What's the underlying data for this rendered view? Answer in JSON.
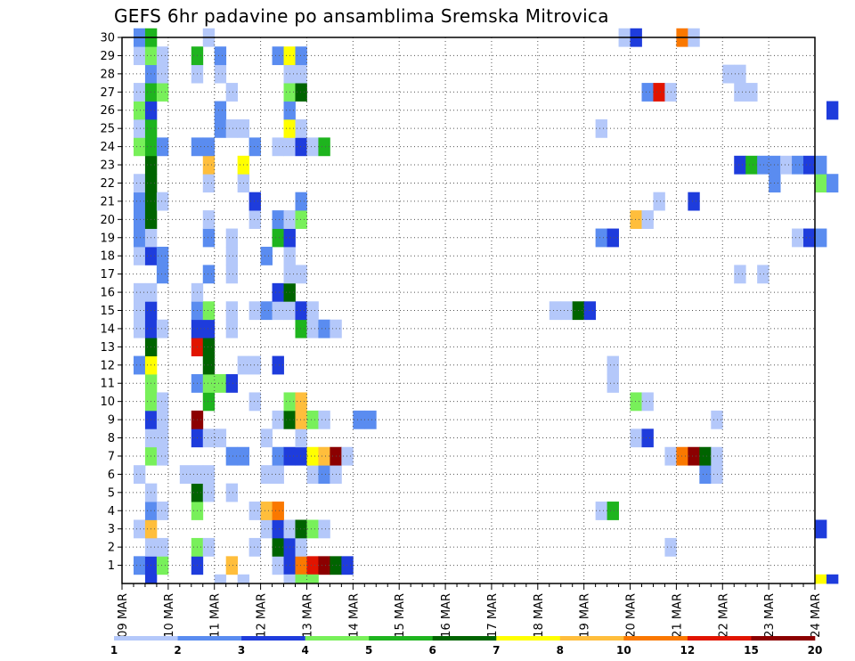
{
  "chart_data": {
    "type": "heatmap",
    "title": "GEFS 6hr padavine po ansamblima Sremska Mitrovica",
    "x_ticks": [
      "09 MAR",
      "10 MAR",
      "11 MAR",
      "12 MAR",
      "13 MAR",
      "14 MAR",
      "15 MAR",
      "16 MAR",
      "17 MAR",
      "18 MAR",
      "19 MAR",
      "20 MAR",
      "21 MAR",
      "22 MAR",
      "23 MAR",
      "24 MAR"
    ],
    "y_ticks": [
      1,
      2,
      3,
      4,
      5,
      6,
      7,
      8,
      9,
      10,
      11,
      12,
      13,
      14,
      15,
      16,
      17,
      18,
      19,
      20,
      21,
      22,
      23,
      24,
      25,
      26,
      27,
      28,
      29,
      30
    ],
    "x_steps_per_day": 4,
    "ylim": [
      0,
      30
    ],
    "grid": true,
    "colorbar": {
      "labels": [
        "1",
        "2",
        "3",
        "4",
        "5",
        "6",
        "7",
        "8",
        "10",
        "12",
        "15",
        "20"
      ],
      "colors": [
        "#b4c8fa",
        "#5a8cf0",
        "#1e3cdc",
        "#78f05a",
        "#1eb41e",
        "#006400",
        "#ffff00",
        "#ffbe3c",
        "#fa7800",
        "#e11400",
        "#8c0000"
      ]
    },
    "cells": [
      {
        "m": 1,
        "s": [
          [
            1,
            2
          ],
          [
            2,
            3
          ],
          [
            3,
            4
          ],
          [
            6,
            3
          ],
          [
            9,
            8
          ],
          [
            13,
            1
          ],
          [
            14,
            3
          ],
          [
            15,
            9
          ],
          [
            16,
            10
          ],
          [
            17,
            11
          ],
          [
            18,
            6
          ],
          [
            19,
            3
          ]
        ]
      },
      {
        "m": 2,
        "s": [
          [
            2,
            1
          ],
          [
            3,
            1
          ],
          [
            6,
            4
          ],
          [
            7,
            1
          ],
          [
            11,
            1
          ],
          [
            13,
            6
          ],
          [
            14,
            3
          ],
          [
            15,
            1
          ],
          [
            47,
            1
          ]
        ]
      },
      {
        "m": 3,
        "s": [
          [
            1,
            1
          ],
          [
            2,
            8
          ],
          [
            12,
            1
          ],
          [
            13,
            3
          ],
          [
            14,
            1
          ],
          [
            15,
            6
          ],
          [
            16,
            4
          ],
          [
            17,
            1
          ],
          [
            60,
            3
          ]
        ]
      },
      {
        "m": 4,
        "s": [
          [
            2,
            2
          ],
          [
            3,
            1
          ],
          [
            6,
            4
          ],
          [
            11,
            1
          ],
          [
            12,
            8
          ],
          [
            13,
            9
          ],
          [
            41,
            1
          ],
          [
            42,
            5
          ]
        ]
      },
      {
        "m": 5,
        "s": [
          [
            2,
            1
          ],
          [
            6,
            6
          ],
          [
            7,
            1
          ],
          [
            9,
            1
          ]
        ]
      },
      {
        "m": 6,
        "s": [
          [
            1,
            1
          ],
          [
            5,
            1
          ],
          [
            6,
            1
          ],
          [
            7,
            1
          ],
          [
            12,
            1
          ],
          [
            13,
            1
          ],
          [
            16,
            1
          ],
          [
            17,
            2
          ],
          [
            18,
            1
          ],
          [
            50,
            2
          ],
          [
            51,
            1
          ]
        ]
      },
      {
        "m": 7,
        "s": [
          [
            2,
            4
          ],
          [
            3,
            1
          ],
          [
            9,
            2
          ],
          [
            10,
            2
          ],
          [
            13,
            2
          ],
          [
            14,
            3
          ],
          [
            15,
            3
          ],
          [
            16,
            7
          ],
          [
            17,
            8
          ],
          [
            18,
            11
          ],
          [
            19,
            1
          ],
          [
            47,
            1
          ],
          [
            48,
            9
          ],
          [
            49,
            11
          ],
          [
            50,
            6
          ],
          [
            51,
            1
          ]
        ]
      },
      {
        "m": 8,
        "s": [
          [
            2,
            1
          ],
          [
            3,
            1
          ],
          [
            6,
            3
          ],
          [
            7,
            1
          ],
          [
            8,
            1
          ],
          [
            12,
            1
          ],
          [
            15,
            1
          ],
          [
            44,
            1
          ],
          [
            45,
            3
          ]
        ]
      },
      {
        "m": 9,
        "s": [
          [
            2,
            3
          ],
          [
            3,
            1
          ],
          [
            6,
            11
          ],
          [
            13,
            1
          ],
          [
            14,
            6
          ],
          [
            15,
            8
          ],
          [
            16,
            4
          ],
          [
            17,
            1
          ],
          [
            20,
            2
          ],
          [
            21,
            2
          ],
          [
            51,
            1
          ]
        ]
      },
      {
        "m": 10,
        "s": [
          [
            2,
            4
          ],
          [
            3,
            1
          ],
          [
            7,
            5
          ],
          [
            11,
            1
          ],
          [
            14,
            4
          ],
          [
            15,
            8
          ],
          [
            44,
            4
          ],
          [
            45,
            1
          ]
        ]
      },
      {
        "m": 11,
        "s": [
          [
            2,
            4
          ],
          [
            6,
            2
          ],
          [
            7,
            4
          ],
          [
            8,
            4
          ],
          [
            9,
            3
          ],
          [
            42,
            1
          ]
        ]
      },
      {
        "m": 12,
        "s": [
          [
            1,
            2
          ],
          [
            2,
            7
          ],
          [
            7,
            6
          ],
          [
            10,
            1
          ],
          [
            11,
            1
          ],
          [
            13,
            3
          ],
          [
            42,
            1
          ]
        ]
      },
      {
        "m": 13,
        "s": [
          [
            2,
            6
          ],
          [
            6,
            10
          ],
          [
            7,
            6
          ]
        ]
      },
      {
        "m": 14,
        "s": [
          [
            1,
            1
          ],
          [
            2,
            3
          ],
          [
            3,
            1
          ],
          [
            6,
            3
          ],
          [
            7,
            3
          ],
          [
            9,
            1
          ],
          [
            15,
            5
          ],
          [
            16,
            1
          ],
          [
            17,
            2
          ],
          [
            18,
            1
          ]
        ]
      },
      {
        "m": 15,
        "s": [
          [
            1,
            1
          ],
          [
            2,
            3
          ],
          [
            6,
            2
          ],
          [
            7,
            4
          ],
          [
            9,
            1
          ],
          [
            11,
            1
          ],
          [
            12,
            2
          ],
          [
            13,
            1
          ],
          [
            14,
            1
          ],
          [
            15,
            3
          ],
          [
            16,
            1
          ],
          [
            37,
            1
          ],
          [
            38,
            1
          ],
          [
            39,
            6
          ],
          [
            40,
            3
          ]
        ]
      },
      {
        "m": 16,
        "s": [
          [
            1,
            1
          ],
          [
            2,
            1
          ],
          [
            6,
            1
          ],
          [
            13,
            3
          ],
          [
            14,
            6
          ]
        ]
      },
      {
        "m": 17,
        "s": [
          [
            3,
            2
          ],
          [
            7,
            2
          ],
          [
            9,
            1
          ],
          [
            14,
            1
          ],
          [
            15,
            1
          ],
          [
            53,
            1
          ],
          [
            55,
            1
          ]
        ]
      },
      {
        "m": 18,
        "s": [
          [
            1,
            1
          ],
          [
            2,
            3
          ],
          [
            3,
            2
          ],
          [
            9,
            1
          ],
          [
            12,
            2
          ],
          [
            14,
            1
          ]
        ]
      },
      {
        "m": 19,
        "s": [
          [
            1,
            2
          ],
          [
            2,
            1
          ],
          [
            7,
            2
          ],
          [
            9,
            1
          ],
          [
            13,
            5
          ],
          [
            14,
            3
          ],
          [
            41,
            2
          ],
          [
            42,
            3
          ],
          [
            58,
            1
          ],
          [
            59,
            3
          ],
          [
            60,
            2
          ]
        ]
      },
      {
        "m": 20,
        "s": [
          [
            1,
            2
          ],
          [
            2,
            6
          ],
          [
            7,
            1
          ],
          [
            11,
            1
          ],
          [
            13,
            2
          ],
          [
            14,
            1
          ],
          [
            15,
            4
          ],
          [
            44,
            8
          ],
          [
            45,
            1
          ]
        ]
      },
      {
        "m": 21,
        "s": [
          [
            1,
            2
          ],
          [
            2,
            6
          ],
          [
            3,
            1
          ],
          [
            11,
            3
          ],
          [
            15,
            2
          ],
          [
            46,
            1
          ],
          [
            49,
            3
          ]
        ]
      },
      {
        "m": 22,
        "s": [
          [
            1,
            1
          ],
          [
            2,
            6
          ],
          [
            7,
            1
          ],
          [
            10,
            1
          ],
          [
            56,
            2
          ],
          [
            60,
            4
          ],
          [
            61,
            2
          ]
        ]
      },
      {
        "m": 23,
        "s": [
          [
            2,
            6
          ],
          [
            7,
            8
          ],
          [
            10,
            7
          ],
          [
            53,
            3
          ],
          [
            54,
            5
          ],
          [
            55,
            2
          ],
          [
            56,
            2
          ],
          [
            57,
            1
          ],
          [
            58,
            2
          ],
          [
            59,
            3
          ],
          [
            60,
            2
          ]
        ]
      },
      {
        "m": 24,
        "s": [
          [
            1,
            4
          ],
          [
            2,
            5
          ],
          [
            3,
            2
          ],
          [
            6,
            2
          ],
          [
            7,
            2
          ],
          [
            11,
            2
          ],
          [
            13,
            1
          ],
          [
            14,
            1
          ],
          [
            15,
            3
          ],
          [
            16,
            1
          ],
          [
            17,
            5
          ]
        ]
      },
      {
        "m": 25,
        "s": [
          [
            1,
            1
          ],
          [
            2,
            5
          ],
          [
            8,
            2
          ],
          [
            9,
            1
          ],
          [
            10,
            1
          ],
          [
            14,
            7
          ],
          [
            15,
            1
          ],
          [
            41,
            1
          ]
        ]
      },
      {
        "m": 26,
        "s": [
          [
            1,
            4
          ],
          [
            2,
            3
          ],
          [
            8,
            2
          ],
          [
            14,
            2
          ],
          [
            61,
            3
          ]
        ]
      },
      {
        "m": 27,
        "s": [
          [
            1,
            1
          ],
          [
            2,
            5
          ],
          [
            3,
            4
          ],
          [
            9,
            1
          ],
          [
            14,
            4
          ],
          [
            15,
            6
          ],
          [
            45,
            2
          ],
          [
            46,
            10
          ],
          [
            47,
            1
          ],
          [
            53,
            1
          ],
          [
            54,
            1
          ]
        ]
      },
      {
        "m": 28,
        "s": [
          [
            2,
            2
          ],
          [
            3,
            1
          ],
          [
            6,
            1
          ],
          [
            8,
            1
          ],
          [
            14,
            1
          ],
          [
            15,
            1
          ],
          [
            52,
            1
          ],
          [
            53,
            1
          ]
        ]
      },
      {
        "m": 29,
        "s": [
          [
            1,
            1
          ],
          [
            2,
            4
          ],
          [
            3,
            1
          ],
          [
            6,
            5
          ],
          [
            8,
            2
          ],
          [
            13,
            2
          ],
          [
            14,
            7
          ],
          [
            15,
            2
          ]
        ]
      },
      {
        "m": 30,
        "s": [
          [
            1,
            2
          ],
          [
            2,
            5
          ],
          [
            7,
            1
          ],
          [
            43,
            1
          ],
          [
            44,
            3
          ],
          [
            48,
            9
          ],
          [
            49,
            1
          ]
        ]
      },
      {
        "m": 0,
        "s": [
          [
            2,
            3
          ],
          [
            8,
            1
          ],
          [
            10,
            1
          ],
          [
            14,
            1
          ],
          [
            15,
            4
          ],
          [
            16,
            4
          ],
          [
            60,
            7
          ],
          [
            61,
            3
          ]
        ]
      }
    ]
  }
}
